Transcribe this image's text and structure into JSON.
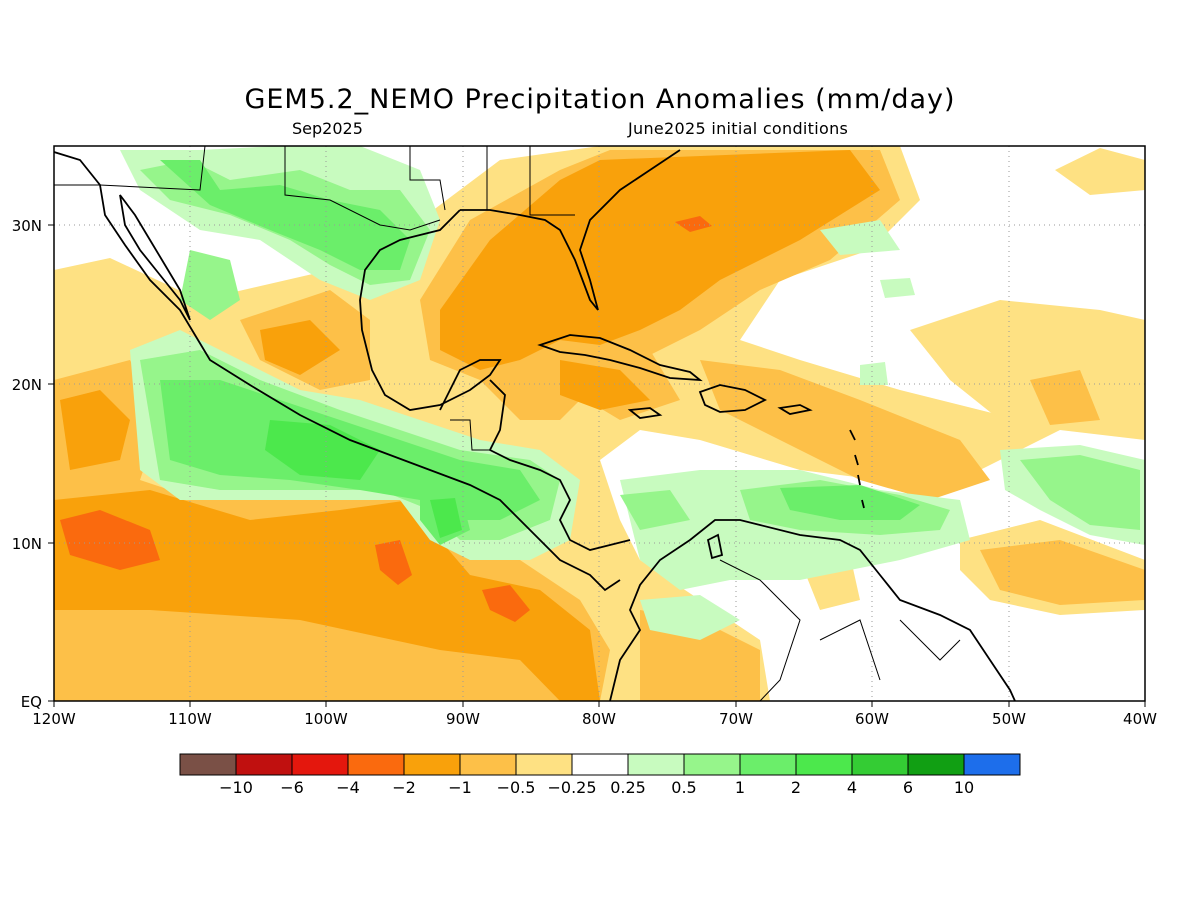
{
  "title": "GEM5.2_NEMO Precipitation Anomalies (mm/day)",
  "subtitle_left": "Sep2025",
  "subtitle_right": "June2025 initial conditions",
  "map": {
    "lon_range": [
      -120,
      -40
    ],
    "lat_range": [
      0,
      35
    ],
    "gridlines": "dotted",
    "x_ticks": [
      "120W",
      "110W",
      "100W",
      "90W",
      "80W",
      "70W",
      "60W",
      "50W",
      "40W"
    ],
    "y_ticks": [
      "EQ",
      "10N",
      "20N",
      "30N"
    ],
    "colors": {
      "neg_10": "#7a5046",
      "neg_6": "#c0100f",
      "neg_4": "#e4170d",
      "neg_2": "#fa6a0e",
      "neg_1": "#f9a10b",
      "neg_0_5": "#fdc048",
      "neg_0_25": "#fee183",
      "neutral": "#ffffff",
      "pos_0_25": "#c8fbbf",
      "pos_0_5": "#96f58b",
      "pos_1": "#6bee6a",
      "pos_2": "#4ce84c",
      "pos_4": "#34cc34",
      "pos_6": "#119f13",
      "pos_10": "#1d6eeb"
    }
  },
  "colorbar": {
    "labels": [
      "−10",
      "−6",
      "−4",
      "−2",
      "−1",
      "−0.5",
      "−0.25",
      "0.25",
      "0.5",
      "1",
      "2",
      "4",
      "6",
      "10"
    ],
    "colors": [
      "#7a5046",
      "#c0100f",
      "#e4170d",
      "#fa6a0e",
      "#f9a10b",
      "#fdc048",
      "#fee183",
      "#ffffff",
      "#c8fbbf",
      "#96f58b",
      "#6bee6a",
      "#4ce84c",
      "#34cc34",
      "#119f13",
      "#1d6eeb"
    ]
  }
}
